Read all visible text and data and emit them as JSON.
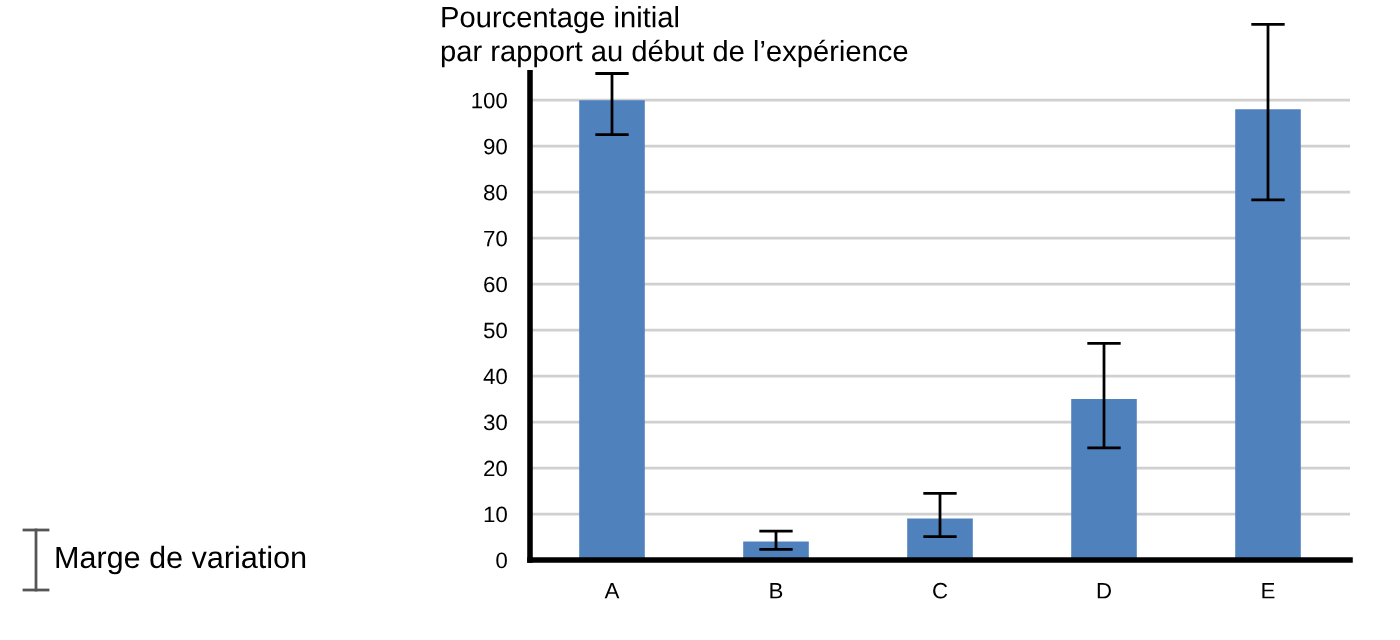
{
  "chart_data": {
    "type": "bar",
    "ylabel": "Pourcentage initial\npar rapport au début de l’expérience",
    "categories": [
      "A",
      "B",
      "C",
      "D",
      "E"
    ],
    "values": [
      100,
      4,
      9,
      35,
      98
    ],
    "errors": [
      [
        92.5,
        105.8
      ],
      [
        2.3,
        6.3
      ],
      [
        5.1,
        14.5
      ],
      [
        24.4,
        47.1
      ],
      [
        78.3,
        116.5
      ]
    ],
    "color": "#4f81bd",
    "ylim": [
      0,
      117
    ],
    "yticks": [
      0,
      10,
      20,
      30,
      40,
      50,
      60,
      70,
      80,
      90,
      100
    ],
    "grid": "y",
    "annotations": [
      "Marge de variation"
    ]
  }
}
